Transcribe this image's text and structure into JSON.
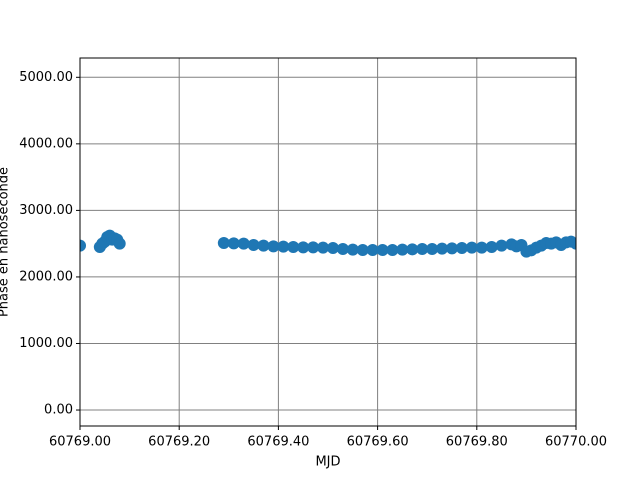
{
  "chart_data": {
    "type": "scatter",
    "x_label": "MJD",
    "y_label": "Phase en nanoseconde",
    "color": "#1f77b4",
    "grid": true,
    "xlim": [
      60769.0,
      60770.0
    ],
    "ylim": [
      -240,
      5290
    ],
    "xticks": [
      {
        "value": 60769.0,
        "label": "60769.00"
      },
      {
        "value": 60769.2,
        "label": "60769.20"
      },
      {
        "value": 60769.4,
        "label": "60769.40"
      },
      {
        "value": 60769.6,
        "label": "60769.60"
      },
      {
        "value": 60769.8,
        "label": "60769.80"
      },
      {
        "value": 60770.0,
        "label": "60770.00"
      }
    ],
    "yticks": [
      {
        "value": 0,
        "label": "0.00"
      },
      {
        "value": 1000,
        "label": "1000.00"
      },
      {
        "value": 2000,
        "label": "2000.00"
      },
      {
        "value": 3000,
        "label": "3000.00"
      },
      {
        "value": 4000,
        "label": "4000.00"
      },
      {
        "value": 5000,
        "label": "5000.00"
      }
    ],
    "x": [
      60769.0,
      60769.04,
      60769.045,
      60769.05,
      60769.055,
      60769.06,
      60769.065,
      60769.07,
      60769.075,
      60769.08,
      60769.29,
      60769.31,
      60769.33,
      60769.35,
      60769.37,
      60769.39,
      60769.41,
      60769.43,
      60769.45,
      60769.47,
      60769.49,
      60769.51,
      60769.53,
      60769.55,
      60769.57,
      60769.59,
      60769.61,
      60769.63,
      60769.65,
      60769.67,
      60769.69,
      60769.71,
      60769.73,
      60769.75,
      60769.77,
      60769.79,
      60769.81,
      60769.83,
      60769.85,
      60769.87,
      60769.88,
      60769.89,
      60769.9,
      60769.91,
      60769.92,
      60769.93,
      60769.94,
      60769.95,
      60769.96,
      60769.97,
      60769.98,
      60769.99,
      60770.0
    ],
    "values": [
      2470,
      2450,
      2500,
      2530,
      2600,
      2620,
      2560,
      2580,
      2560,
      2500,
      2510,
      2505,
      2500,
      2480,
      2470,
      2460,
      2455,
      2450,
      2445,
      2445,
      2440,
      2435,
      2420,
      2410,
      2405,
      2405,
      2405,
      2405,
      2410,
      2415,
      2420,
      2420,
      2425,
      2430,
      2435,
      2440,
      2440,
      2450,
      2470,
      2490,
      2460,
      2480,
      2380,
      2400,
      2440,
      2470,
      2510,
      2500,
      2520,
      2480,
      2520,
      2530,
      2500
    ]
  }
}
